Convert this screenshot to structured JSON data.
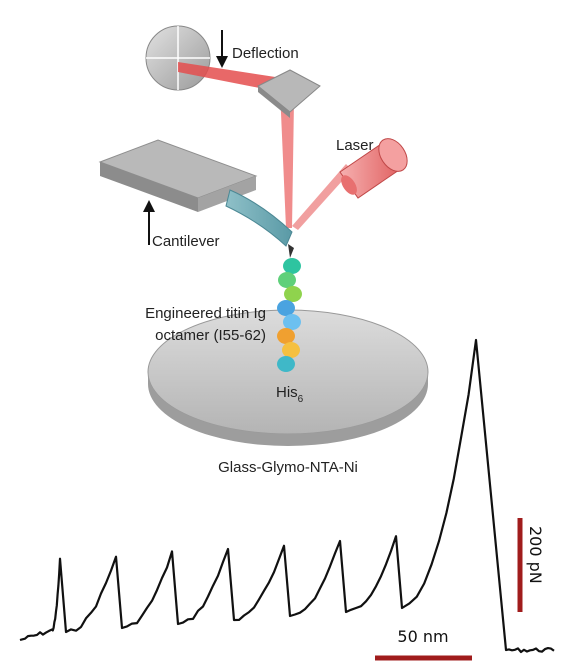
{
  "labels": {
    "deflection": "Deflection",
    "laser": "Laser",
    "cantilever": "Cantilever",
    "protein_line1": "Engineered titin Ig",
    "protein_line2": "octamer (I55-62)",
    "his": "His",
    "his_sub": "6",
    "surface": "Glass-Glymo-NTA-Ni"
  },
  "scale_bars": {
    "force": "200 pN",
    "distance": "50 nm",
    "color": "#a01c1c"
  },
  "colors": {
    "laser_beam": "#e44d4d",
    "trace": "#111111",
    "bead_colors": [
      "#2ec4a0",
      "#5fd07a",
      "#8fd34d",
      "#4aa3e0",
      "#6cc0f0",
      "#f0a030",
      "#f5c040",
      "#3fb8c8"
    ]
  },
  "trace": {
    "peak_count": 8,
    "description_free": true
  }
}
